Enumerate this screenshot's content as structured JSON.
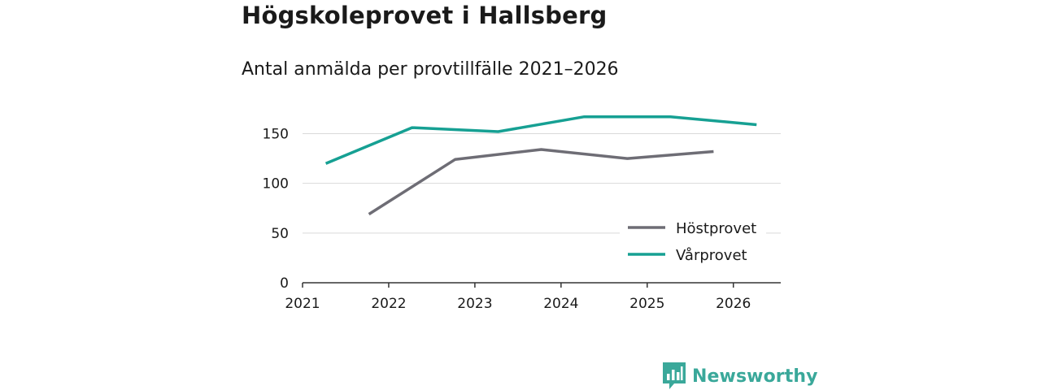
{
  "header": {
    "title": "Högskoleprovet i Hallsberg",
    "subtitle": "Antal anmälda per provtillfälle 2021–2026"
  },
  "brand": {
    "name": "Newsworthy",
    "color": "#3aa89a"
  },
  "chart_data": {
    "type": "line",
    "title": "Högskoleprovet i Hallsberg",
    "subtitle": "Antal anmälda per provtillfälle 2021–2026",
    "xlabel": "",
    "ylabel": "",
    "xlim": [
      2021,
      2026.55
    ],
    "ylim": [
      0,
      170
    ],
    "x_ticks": [
      2021,
      2022,
      2023,
      2024,
      2025,
      2026
    ],
    "y_ticks": [
      0,
      50,
      100,
      150
    ],
    "grid": "horizontal",
    "legend_position": "bottom-right",
    "series": [
      {
        "name": "Höstprovet",
        "color": "#6e6d75",
        "x": [
          2021.77,
          2022.77,
          2023.77,
          2024.77,
          2025.77
        ],
        "values": [
          69,
          124,
          134,
          125,
          132
        ]
      },
      {
        "name": "Vårprovet",
        "color": "#16a093",
        "x": [
          2021.27,
          2022.27,
          2023.27,
          2024.27,
          2025.27,
          2026.27
        ],
        "values": [
          120,
          156,
          152,
          167,
          167,
          159
        ]
      }
    ]
  }
}
